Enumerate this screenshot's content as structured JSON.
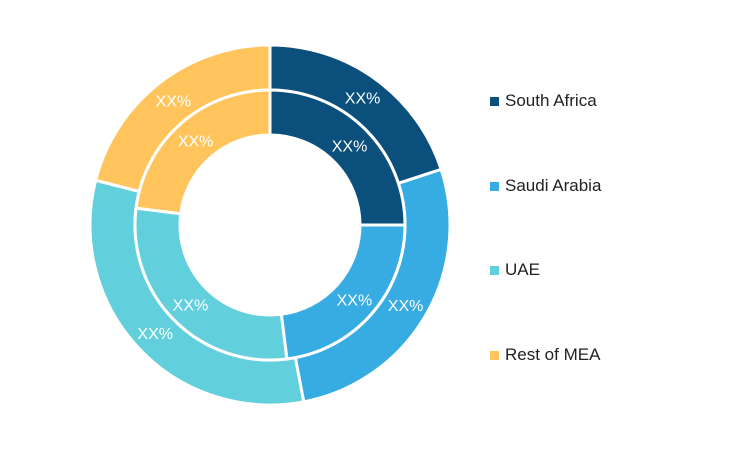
{
  "chart_data": {
    "type": "pie",
    "variant": "nested-donut",
    "categories": [
      "South Africa",
      "Saudi Arabia",
      "UAE",
      "Rest of MEA"
    ],
    "colors": [
      "#0b4f7c",
      "#36ace2",
      "#62d0dc",
      "#ffc55c"
    ],
    "series": [
      {
        "ring": "outer",
        "values": [
          20,
          27,
          32,
          21
        ],
        "labels": [
          "XX%",
          "XX%",
          "XX%",
          "XX%"
        ]
      },
      {
        "ring": "inner",
        "values": [
          25,
          23,
          29,
          23
        ],
        "labels": [
          "XX%",
          "XX%",
          "XX%",
          "XX%"
        ]
      }
    ],
    "legend": {
      "position": "right",
      "entries": [
        "South Africa",
        "Saudi Arabia",
        "UAE",
        "Rest of MEA"
      ]
    }
  }
}
